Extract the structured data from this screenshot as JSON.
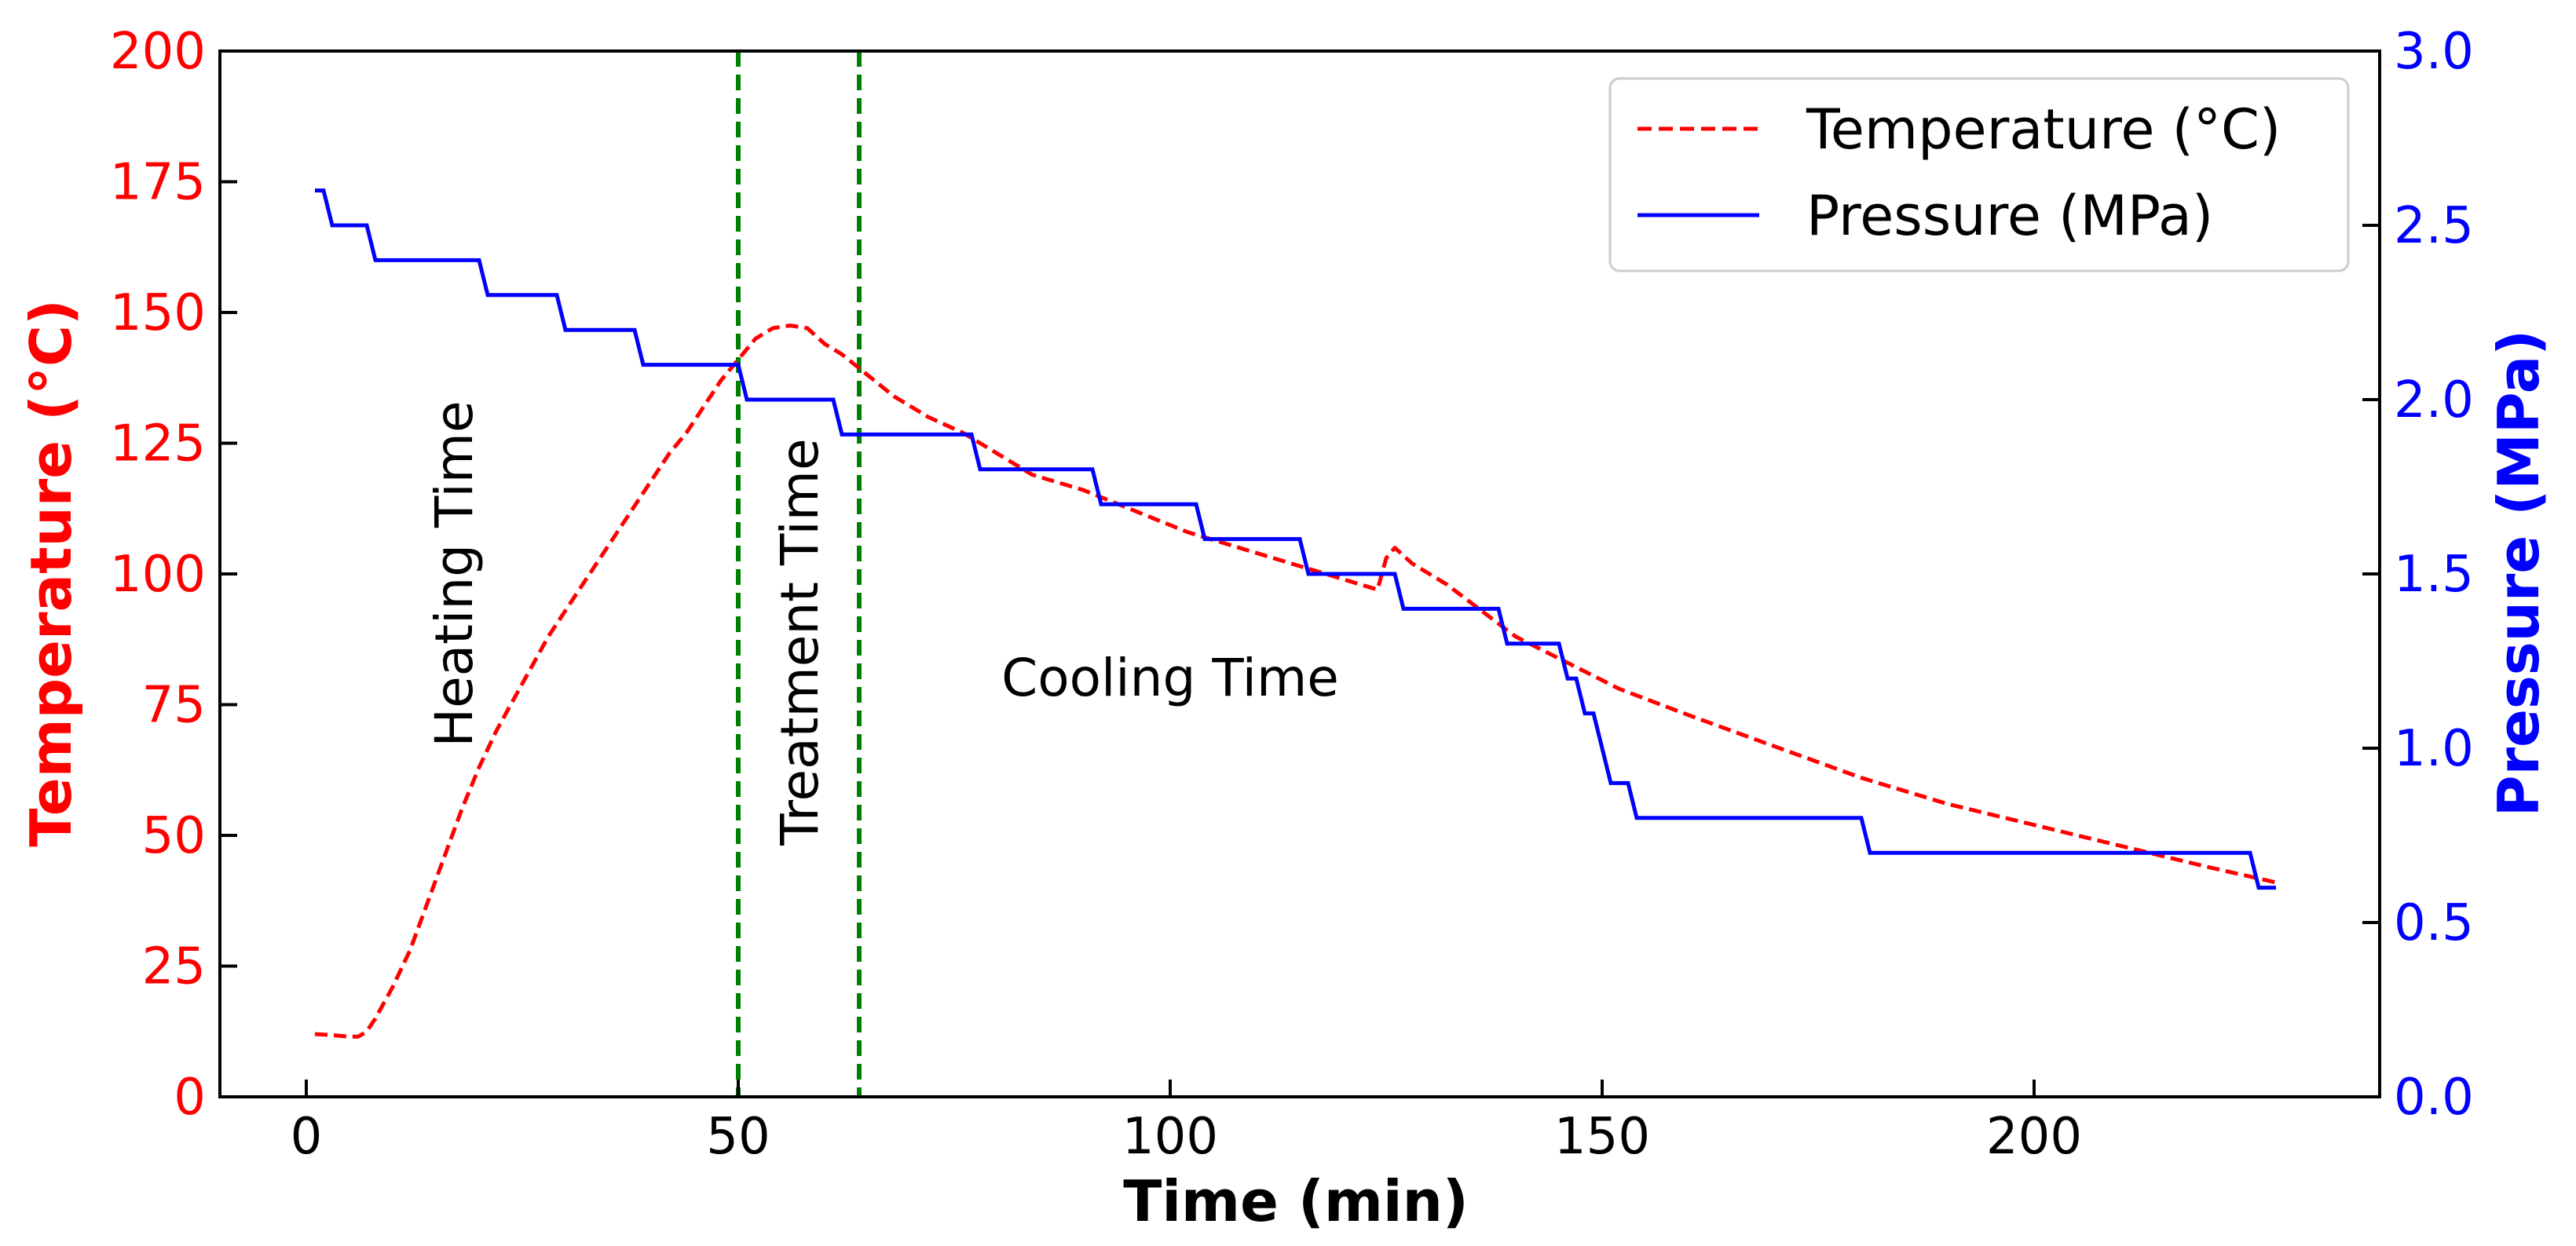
{
  "chart_data": {
    "type": "line",
    "title": "",
    "xlabel": "Time (min)",
    "ylabel_left": "Temperature (°C)",
    "ylabel_right": "Pressure (MPa)",
    "xlim": [
      -10,
      240
    ],
    "ylim_left": [
      0,
      200
    ],
    "ylim_right": [
      0.0,
      3.0
    ],
    "xticks": [
      "0",
      "50",
      "100",
      "150",
      "200"
    ],
    "yticks_left": [
      "0",
      "25",
      "50",
      "75",
      "100",
      "125",
      "150",
      "175",
      "200"
    ],
    "yticks_right": [
      "0.0",
      "0.5",
      "1.0",
      "1.5",
      "2.0",
      "2.5",
      "3.0"
    ],
    "grid": false,
    "legend_position": "top-right",
    "colors": {
      "temperature": "#ff0000",
      "pressure": "#0000ff",
      "phase_marker": "#008000"
    },
    "series": [
      {
        "name": "Temperature (°C)",
        "axis": "left",
        "style": "dashed",
        "color": "#ff0000",
        "x": [
          1,
          3,
          5,
          6,
          7,
          8,
          10,
          12,
          14,
          16,
          18,
          20,
          22,
          24,
          26,
          28,
          30,
          32,
          34,
          36,
          38,
          40,
          42,
          44,
          46,
          48,
          50,
          52,
          54,
          56,
          58,
          60,
          62,
          65,
          68,
          72,
          76,
          80,
          84,
          90,
          96,
          102,
          108,
          114,
          120,
          124,
          125,
          126,
          128,
          132,
          136,
          140,
          146,
          152,
          160,
          170,
          180,
          190,
          200,
          210,
          220,
          228
        ],
        "y": [
          12,
          11.8,
          11.5,
          11.5,
          12.5,
          15,
          21,
          28,
          37,
          46,
          55,
          63,
          70,
          76,
          82,
          88,
          93,
          98,
          103,
          108,
          113,
          118,
          123,
          127,
          132,
          137,
          141,
          145,
          147,
          147.5,
          147,
          144,
          142,
          138,
          134,
          130,
          127,
          123,
          119,
          116,
          112,
          108,
          105,
          102,
          99,
          97,
          103,
          105,
          102,
          98,
          93,
          88,
          83,
          78,
          73,
          67,
          61,
          56,
          52,
          48,
          44,
          41
        ]
      },
      {
        "name": "Pressure (MPa)",
        "axis": "right",
        "style": "solid",
        "color": "#0000ff",
        "x": [
          1,
          2,
          3,
          7,
          8,
          20,
          21,
          29,
          30,
          38,
          39,
          50,
          51,
          61,
          62,
          77,
          78,
          91,
          92,
          103,
          104,
          115,
          116,
          126,
          127,
          138,
          139,
          145,
          146,
          147,
          148,
          149,
          150,
          151,
          152,
          153,
          154,
          180,
          181,
          225,
          226,
          228
        ],
        "y": [
          2.6,
          2.6,
          2.5,
          2.5,
          2.4,
          2.4,
          2.3,
          2.3,
          2.2,
          2.2,
          2.1,
          2.1,
          2.0,
          2.0,
          1.9,
          1.9,
          1.8,
          1.8,
          1.7,
          1.7,
          1.6,
          1.6,
          1.5,
          1.5,
          1.4,
          1.4,
          1.3,
          1.3,
          1.2,
          1.2,
          1.1,
          1.1,
          1.0,
          0.9,
          0.9,
          0.9,
          0.8,
          0.8,
          0.7,
          0.7,
          0.6,
          0.6
        ]
      }
    ],
    "vlines": [
      {
        "x": 50,
        "style": "dashed",
        "color": "#008000"
      },
      {
        "x": 64,
        "style": "dashed",
        "color": "#008000"
      }
    ],
    "annotations": [
      {
        "text": "Heating Time",
        "x": 17,
        "y_left": 100,
        "rotation": -90
      },
      {
        "text": "Treatment Time",
        "x": 57,
        "y_left": 87,
        "rotation": -90
      },
      {
        "text": "Cooling Time",
        "x": 100,
        "y_left": 80,
        "rotation": 0
      }
    ]
  }
}
